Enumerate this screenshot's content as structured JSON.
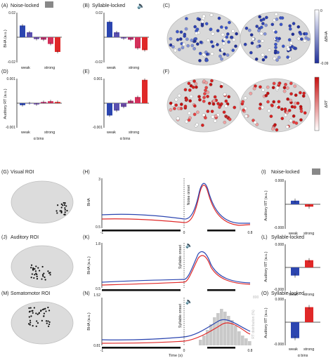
{
  "panels": {
    "A": {
      "label": "(A)",
      "title": "Noise-locked",
      "ylabel": "BHA (a.u.)",
      "ymax": "0.02",
      "ymin": "-0.02",
      "xl_weak": "weak",
      "xl_strong": "strong",
      "values": [
        0.0095,
        0.004,
        -0.0015,
        -0.002,
        -0.0055,
        -0.012
      ]
    },
    "B": {
      "label": "(B)",
      "title": "Syllable-locked",
      "ymax": "0.02",
      "ymin": "-0.02",
      "xl_weak": "weak",
      "xl_strong": "strong",
      "values": [
        0.0125,
        0.004,
        -0.001,
        -0.002,
        -0.009,
        -0.0105
      ]
    },
    "C": {
      "label": "(C)",
      "cbar_top": "0",
      "cbar_bottom": "-0.09",
      "cbar_label": "ΔBHA"
    },
    "D": {
      "label": "(D)",
      "ylabel": "Auditory RT (a.u.)",
      "ymax": "0.001",
      "ymin": "-0.001",
      "xl_weak": "weak",
      "xl_strong": "strong",
      "xlabel": "α bins",
      "values": [
        -8e-05,
        0.0,
        -5e-05,
        5e-05,
        8e-05,
        5e-05
      ]
    },
    "E": {
      "label": "(E)",
      "ymax": "0.001",
      "ymin": "-0.001",
      "xl_weak": "weak",
      "xl_strong": "strong",
      "xlabel": "α bins",
      "values": [
        -0.0005,
        -0.0003,
        -0.00015,
        0.0001,
        0.00025,
        0.00095
      ]
    },
    "F": {
      "label": "(F)",
      "cbar_label": "ΔRT"
    },
    "G": {
      "label": "(G)",
      "title": "Visual ROI"
    },
    "H": {
      "label": "(H)",
      "ylabel": "BHA",
      "ymax": "3",
      "ymin": "0.5",
      "xmin": "-1",
      "xzero": "0",
      "xmax": "0.8",
      "onset": "Noise onset"
    },
    "I": {
      "label": "(I)",
      "title": "Noise-locked",
      "ymax": "0.008",
      "ymin": "-0.008",
      "xl_weak": "weak",
      "xl_strong": "strong",
      "values": [
        0.0012,
        -0.0008
      ]
    },
    "J": {
      "label": "(J)",
      "title": "Auditory ROI"
    },
    "K": {
      "label": "(K)",
      "ylabel": "BHA (a.u.)",
      "ymax": "1.8",
      "ymin": "0.5",
      "onset": "Syllable onset"
    },
    "L": {
      "label": "(L)",
      "title": "Syllable-locked",
      "ylabel": "Auditory RT (a.u.)",
      "ymax": "0.008",
      "ymin": "-0.008",
      "xl_weak": "weak",
      "xl_strong": "strong",
      "values": [
        -0.0028,
        0.0025
      ]
    },
    "M": {
      "label": "(M)",
      "title": "Somatomotor ROI"
    },
    "N": {
      "label": "(N)",
      "ylabel": "BHA (a.u.)",
      "ymax": "1.52",
      "ymin": "0.81",
      "xmin": "-1",
      "xzero": "0",
      "xmax": "0.8",
      "xlabel": "Time (s)",
      "onset": "Syllable onset",
      "hist_label": "RT distribution (%)",
      "hist_max": "800"
    },
    "O": {
      "label": "(O)",
      "title": "Syllable-locked",
      "ylabel": "Auditory RT (a.u.)",
      "ymax": "0.008",
      "ymin": "-0.008",
      "xl_weak": "weak",
      "xl_strong": "strong",
      "xlabel": "α bins",
      "values": [
        -0.0055,
        0.0052
      ]
    }
  },
  "colors": {
    "blue": "#2b45b0",
    "red": "#e02828",
    "purple": "#6a4aa5",
    "magenta": "#b0306a",
    "gray": "#c9c9c9"
  }
}
